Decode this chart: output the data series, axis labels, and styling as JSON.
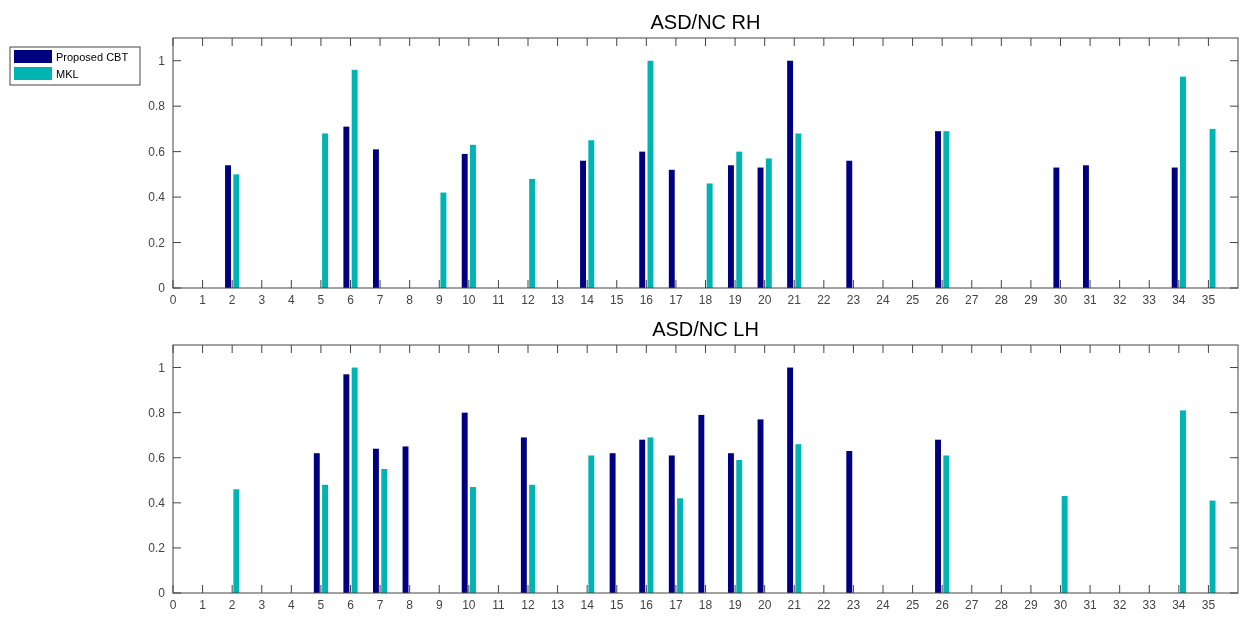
{
  "chart_data": [
    {
      "type": "bar",
      "title": "ASD/NC RH",
      "x": [
        1,
        2,
        3,
        4,
        5,
        6,
        7,
        8,
        9,
        10,
        11,
        12,
        13,
        14,
        15,
        16,
        17,
        18,
        19,
        20,
        21,
        22,
        23,
        24,
        25,
        26,
        27,
        28,
        29,
        30,
        31,
        32,
        33,
        34,
        35
      ],
      "series": [
        {
          "name": "Proposed CBT",
          "color": "#000080",
          "values": [
            0,
            0.54,
            0,
            0,
            0,
            0.71,
            0.61,
            0,
            0,
            0.59,
            0,
            0,
            0,
            0.56,
            0,
            0.6,
            0.52,
            0,
            0.54,
            0.53,
            1.0,
            0,
            0.56,
            0,
            0,
            0.69,
            0,
            0,
            0,
            0.53,
            0.54,
            0,
            0,
            0.53,
            0
          ]
        },
        {
          "name": "MKL",
          "color": "#00b4b4",
          "values": [
            0,
            0.5,
            0,
            0,
            0.68,
            0.96,
            0,
            0,
            0.42,
            0.63,
            0,
            0.48,
            0,
            0.65,
            0,
            1.0,
            0,
            0.46,
            0.6,
            0.57,
            0.68,
            0,
            0,
            0,
            0,
            0.69,
            0,
            0,
            0,
            0,
            0,
            0,
            0,
            0.93,
            0.7
          ]
        }
      ],
      "xlim": [
        0,
        36
      ],
      "xticks": [
        0,
        1,
        2,
        3,
        4,
        5,
        6,
        7,
        8,
        9,
        10,
        11,
        12,
        13,
        14,
        15,
        16,
        17,
        18,
        19,
        20,
        21,
        22,
        23,
        24,
        25,
        26,
        27,
        28,
        29,
        30,
        31,
        32,
        33,
        34,
        35
      ],
      "ylim": [
        0,
        1.1
      ],
      "yticks": [
        0,
        0.2,
        0.4,
        0.6,
        0.8,
        1
      ],
      "legend": "top left",
      "grid": false
    },
    {
      "type": "bar",
      "title": "ASD/NC LH",
      "x": [
        1,
        2,
        3,
        4,
        5,
        6,
        7,
        8,
        9,
        10,
        11,
        12,
        13,
        14,
        15,
        16,
        17,
        18,
        19,
        20,
        21,
        22,
        23,
        24,
        25,
        26,
        27,
        28,
        29,
        30,
        31,
        32,
        33,
        34,
        35
      ],
      "series": [
        {
          "color": "#000080",
          "values": [
            0,
            0,
            0,
            0,
            0.62,
            0.97,
            0.64,
            0.65,
            0,
            0.8,
            0,
            0.69,
            0,
            0,
            0.62,
            0.68,
            0.61,
            0.79,
            0.62,
            0.77,
            1.0,
            0,
            0.63,
            0,
            0,
            0.68,
            0,
            0,
            0,
            0,
            0,
            0,
            0,
            0,
            0
          ]
        },
        {
          "color": "#00b4b4",
          "values": [
            0,
            0.46,
            0,
            0,
            0.48,
            1.0,
            0.55,
            0,
            0,
            0.47,
            0,
            0.48,
            0,
            0.61,
            0,
            0.69,
            0.42,
            0,
            0.59,
            0,
            0.66,
            0,
            0,
            0,
            0,
            0.61,
            0,
            0,
            0,
            0.43,
            0,
            0,
            0,
            0.81,
            0.41
          ]
        }
      ],
      "xlim": [
        0,
        36
      ],
      "xticks": [
        0,
        1,
        2,
        3,
        4,
        5,
        6,
        7,
        8,
        9,
        10,
        11,
        12,
        13,
        14,
        15,
        16,
        17,
        18,
        19,
        20,
        21,
        22,
        23,
        24,
        25,
        26,
        27,
        28,
        29,
        30,
        31,
        32,
        33,
        34,
        35
      ],
      "ylim": [
        0,
        1.1
      ],
      "yticks": [
        0,
        0.2,
        0.4,
        0.6,
        0.8,
        1
      ],
      "grid": false
    }
  ]
}
